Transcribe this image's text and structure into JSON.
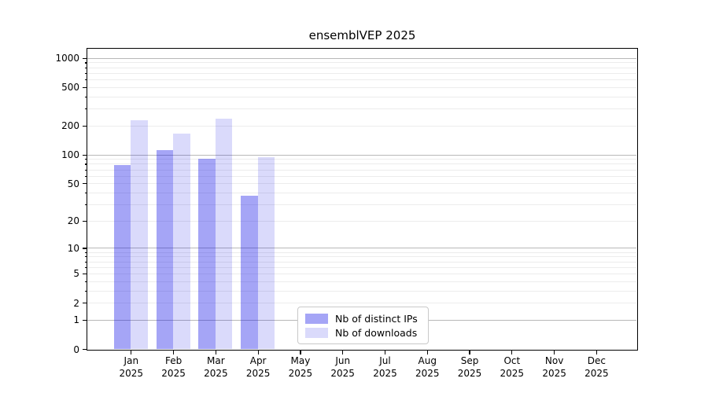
{
  "title": "ensemblVEP 2025",
  "chart_data": {
    "type": "bar",
    "title": "ensemblVEP 2025",
    "scale": "log1p",
    "grid": true,
    "legend_position": "lower-center",
    "categories": [
      "Jan",
      "Feb",
      "Mar",
      "Apr",
      "May",
      "Jun",
      "Jul",
      "Aug",
      "Sep",
      "Oct",
      "Nov",
      "Dec"
    ],
    "year_label": "2025",
    "series": [
      {
        "name": "Nb of distinct IPs",
        "color": "rgba(10,10,230,0.37)",
        "values": [
          78,
          111,
          91,
          37,
          0,
          0,
          0,
          0,
          0,
          0,
          0,
          0
        ]
      },
      {
        "name": "Nb of downloads",
        "color": "rgba(10,10,230,0.15)",
        "values": [
          228,
          165,
          238,
          94,
          0,
          0,
          0,
          0,
          0,
          0,
          0,
          0
        ]
      }
    ],
    "yticks": [
      0,
      1,
      2,
      5,
      10,
      20,
      50,
      100,
      200,
      500,
      1000
    ],
    "ylim": [
      0,
      1280
    ],
    "grid_major_color": "#b8b8b8",
    "grid_minor_color": "#ececec"
  },
  "legend": {
    "items": [
      {
        "label": "Nb of distinct IPs"
      },
      {
        "label": "Nb of downloads"
      }
    ]
  }
}
